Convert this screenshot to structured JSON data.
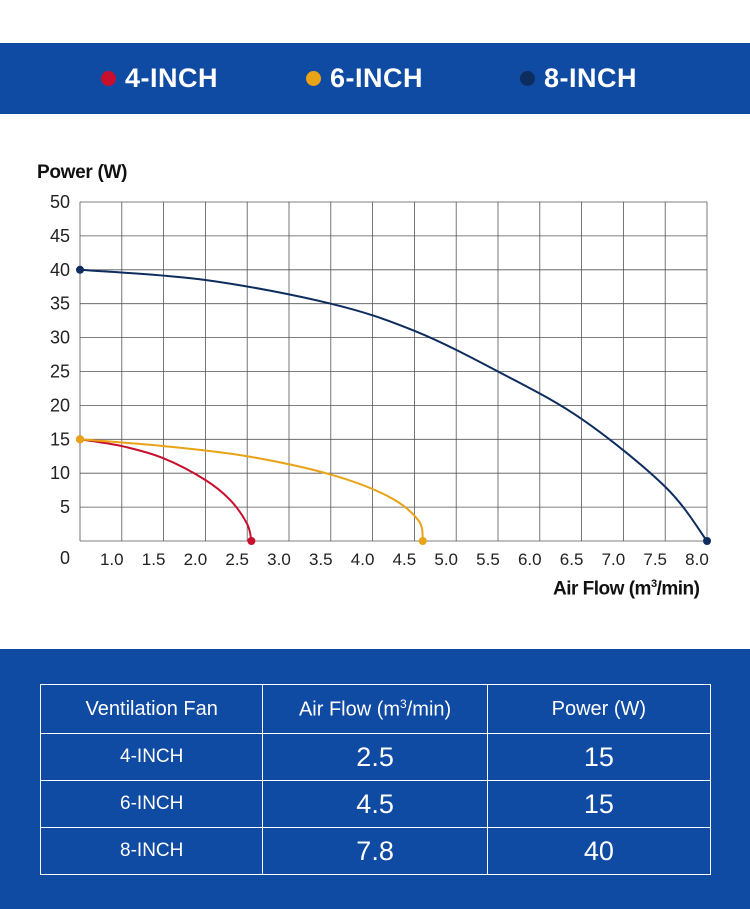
{
  "legend": [
    {
      "label": "4-INCH",
      "color": "#c8102e"
    },
    {
      "label": "6-INCH",
      "color": "#e8a317"
    },
    {
      "label": "8-INCH",
      "color": "#0d2d5e"
    }
  ],
  "chart_data": {
    "type": "line",
    "ylabel": "Power (W)",
    "xlabel_main": "Air Flow (m",
    "xlabel_sup": "3",
    "xlabel_tail": "/min)",
    "y_ticks": [
      "50",
      "45",
      "40",
      "35",
      "30",
      "25",
      "20",
      "15",
      "10",
      "5",
      "0"
    ],
    "x_ticks": [
      "1.0",
      "1.5",
      "2.0",
      "2.5",
      "3.0",
      "3.5",
      "4.0",
      "4.5",
      "5.0",
      "5.5",
      "6.0",
      "6.5",
      "7.0",
      "7.5",
      "8.0"
    ],
    "xlim": [
      0.5,
      8.0
    ],
    "ylim": [
      0,
      50
    ],
    "grid": true,
    "series": [
      {
        "name": "4-INCH",
        "color": "#c8102e",
        "points": [
          [
            0.5,
            15
          ],
          [
            1.0,
            14
          ],
          [
            1.5,
            12.2
          ],
          [
            2.0,
            9
          ],
          [
            2.3,
            6
          ],
          [
            2.5,
            2.5
          ],
          [
            2.55,
            0
          ]
        ]
      },
      {
        "name": "6-INCH",
        "color": "#e8a317",
        "points": [
          [
            0.5,
            15
          ],
          [
            1.5,
            14
          ],
          [
            2.5,
            12.5
          ],
          [
            3.5,
            9.8
          ],
          [
            4.2,
            6.5
          ],
          [
            4.55,
            3
          ],
          [
            4.6,
            0
          ]
        ]
      },
      {
        "name": "8-INCH",
        "color": "#0d2d5e",
        "points": [
          [
            0.5,
            40
          ],
          [
            2.0,
            38.5
          ],
          [
            3.5,
            35
          ],
          [
            4.5,
            31
          ],
          [
            5.5,
            25
          ],
          [
            6.5,
            18
          ],
          [
            7.5,
            8
          ],
          [
            8.0,
            0
          ]
        ]
      }
    ]
  },
  "table": {
    "headers": [
      "Ventilation Fan",
      "Air Flow (m",
      "3",
      "/min)",
      "Power (W)"
    ],
    "rows": [
      {
        "name": "4-INCH",
        "airflow": "2.5",
        "power": "15"
      },
      {
        "name": "6-INCH",
        "airflow": "4.5",
        "power": "15"
      },
      {
        "name": "8-INCH",
        "airflow": "7.8",
        "power": "40"
      }
    ]
  }
}
